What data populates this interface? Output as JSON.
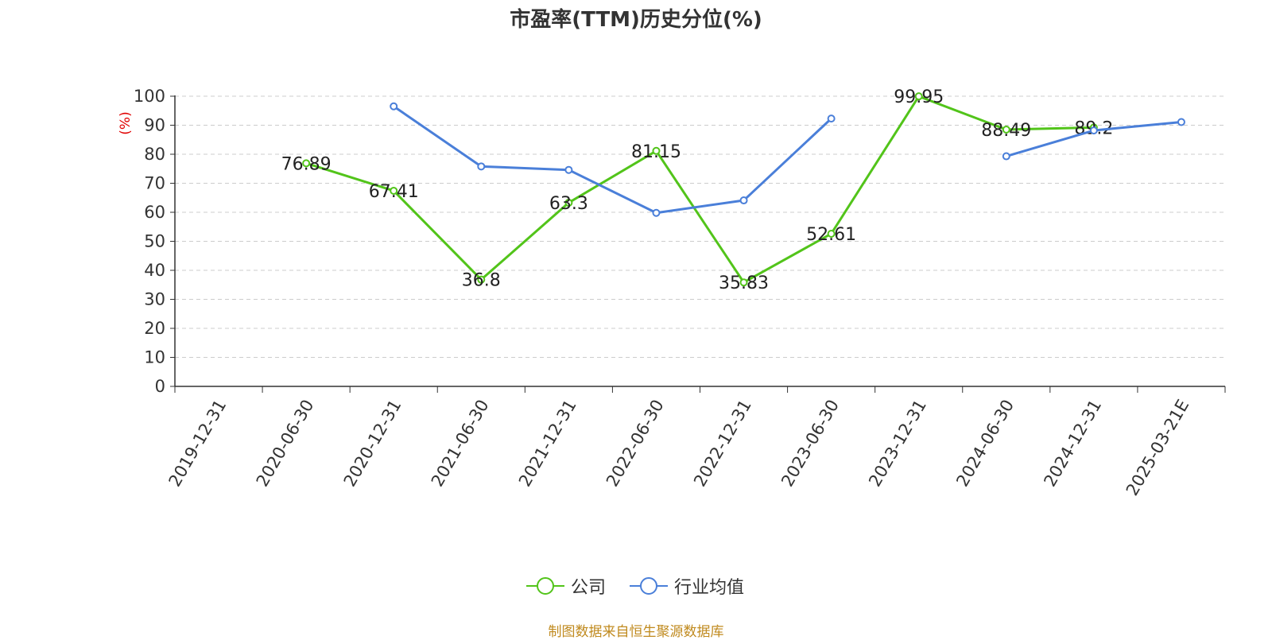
{
  "chart_data": {
    "type": "line",
    "title": "市盈率(TTM)历史分位(%)",
    "ylabel": "(%)",
    "xlabel": "",
    "ylim": [
      0,
      100
    ],
    "yticks": [
      0,
      10,
      20,
      30,
      40,
      50,
      60,
      70,
      80,
      90,
      100
    ],
    "categories": [
      "2019-12-31",
      "2020-06-30",
      "2020-12-31",
      "2021-06-30",
      "2021-12-31",
      "2022-06-30",
      "2022-12-31",
      "2023-06-30",
      "2023-12-31",
      "2024-06-30",
      "2024-12-31",
      "2025-03-21E"
    ],
    "grid": true,
    "legend_position": "bottom",
    "series": [
      {
        "name": "公司",
        "color": "#52c41a",
        "values": [
          null,
          76.89,
          67.41,
          36.8,
          63.3,
          81.15,
          35.83,
          52.61,
          99.95,
          88.49,
          89.2,
          null
        ],
        "labels": [
          "",
          "76.89",
          "67.41",
          "36.8",
          "63.3",
          "81.15",
          "35.83",
          "52.61",
          "99.95",
          "88.49",
          "89.2",
          ""
        ]
      },
      {
        "name": "行业均值",
        "color": "#4a7fd9",
        "values": [
          null,
          null,
          96.5,
          75.8,
          74.6,
          59.8,
          64.1,
          92.3,
          null,
          79.3,
          88.2,
          91.1
        ],
        "labels": [
          "",
          "",
          "",
          "",
          "",
          "",
          "",
          "",
          "",
          "",
          "",
          ""
        ]
      }
    ]
  },
  "source_note": "制图数据来自恒生聚源数据库"
}
